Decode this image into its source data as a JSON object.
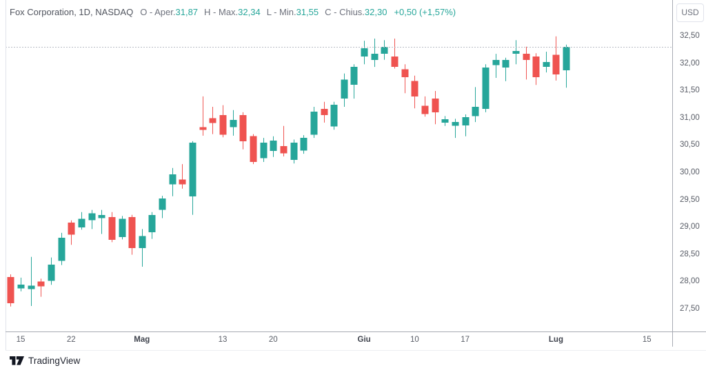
{
  "header": {
    "title": "Fox Corporation, 1D, NASDAQ",
    "ohlc": [
      {
        "label": "O - Aper.",
        "value": "31,87"
      },
      {
        "label": "H - Max.",
        "value": "32,34"
      },
      {
        "label": "L - Min.",
        "value": "31,55"
      },
      {
        "label": "C - Chius.",
        "value": "32,30"
      }
    ],
    "change": "+0,50 (+1,57%)"
  },
  "price_axis": {
    "currency_label": "USD",
    "ticks": [
      {
        "label": "32,50",
        "value": 32.5
      },
      {
        "label": "32,00",
        "value": 32.0
      },
      {
        "label": "31,50",
        "value": 31.5
      },
      {
        "label": "31,00",
        "value": 31.0
      },
      {
        "label": "30,50",
        "value": 30.5
      },
      {
        "label": "30,00",
        "value": 30.0
      },
      {
        "label": "29,50",
        "value": 29.5
      },
      {
        "label": "29,00",
        "value": 29.0
      },
      {
        "label": "28,50",
        "value": 28.5
      },
      {
        "label": "28,00",
        "value": 28.0
      },
      {
        "label": "27,50",
        "value": 27.5
      }
    ]
  },
  "time_axis": {
    "ticks": [
      {
        "label": "15",
        "slot": 1,
        "major": false
      },
      {
        "label": "22",
        "slot": 6,
        "major": false
      },
      {
        "label": "Mag",
        "slot": 13,
        "major": true
      },
      {
        "label": "13",
        "slot": 21,
        "major": false
      },
      {
        "label": "20",
        "slot": 26,
        "major": false
      },
      {
        "label": "Giu",
        "slot": 35,
        "major": true
      },
      {
        "label": "10",
        "slot": 40,
        "major": false
      },
      {
        "label": "17",
        "slot": 45,
        "major": false
      },
      {
        "label": "Lug",
        "slot": 54,
        "major": true
      },
      {
        "label": "15",
        "slot": 63,
        "major": false
      }
    ]
  },
  "watermark": {
    "text": "TradingView"
  },
  "colors": {
    "up": "#26a69a",
    "down": "#ef5350",
    "last_price_line": "#b8bbc5",
    "value_text": "#26a69a"
  },
  "chart_data": {
    "type": "candlestick",
    "title": "Fox Corporation, 1D, NASDAQ",
    "interval": "1D",
    "currency": "USD",
    "legend_last_bar": {
      "open": 31.87,
      "high": 32.34,
      "low": 31.55,
      "close": 32.3,
      "change_text": "+0,50 (+1,57%)"
    },
    "y_axis": {
      "min": 27.5,
      "max": 32.5,
      "step": 0.5,
      "side": "right",
      "grid": false
    },
    "x_axis": {
      "tick_labels": [
        "15",
        "22",
        "Mag",
        "13",
        "20",
        "Giu",
        "10",
        "17",
        "Lug",
        "15"
      ]
    },
    "last_price": 32.3,
    "candles_ohlc": [
      [
        28.08,
        28.13,
        27.54,
        27.6
      ],
      [
        27.87,
        28.07,
        27.82,
        27.94
      ],
      [
        27.86,
        28.45,
        27.55,
        27.92
      ],
      [
        28.0,
        28.05,
        27.72,
        27.91
      ],
      [
        28.01,
        28.44,
        27.94,
        28.31
      ],
      [
        28.38,
        28.89,
        28.3,
        28.8
      ],
      [
        29.08,
        29.12,
        28.67,
        28.86
      ],
      [
        28.99,
        29.27,
        28.95,
        29.15
      ],
      [
        29.12,
        29.31,
        28.96,
        29.25
      ],
      [
        29.16,
        29.31,
        28.87,
        29.22
      ],
      [
        29.18,
        29.27,
        28.72,
        28.76
      ],
      [
        28.81,
        29.2,
        28.77,
        29.15
      ],
      [
        29.18,
        29.22,
        28.49,
        28.61
      ],
      [
        28.61,
        28.96,
        28.27,
        28.83
      ],
      [
        28.9,
        29.27,
        28.78,
        29.22
      ],
      [
        29.31,
        29.57,
        29.16,
        29.52
      ],
      [
        29.78,
        30.08,
        29.56,
        29.96
      ],
      [
        29.87,
        30.15,
        29.7,
        29.78
      ],
      [
        29.56,
        30.57,
        29.22,
        30.54
      ],
      [
        30.83,
        31.39,
        30.67,
        30.78
      ],
      [
        30.99,
        31.2,
        30.7,
        30.9
      ],
      [
        31.05,
        31.23,
        30.64,
        30.69
      ],
      [
        30.83,
        31.14,
        30.67,
        30.96
      ],
      [
        31.05,
        31.1,
        30.42,
        30.57
      ],
      [
        30.66,
        30.7,
        30.15,
        30.19
      ],
      [
        30.26,
        30.63,
        30.19,
        30.54
      ],
      [
        30.39,
        30.66,
        30.28,
        30.58
      ],
      [
        30.48,
        30.85,
        30.29,
        30.35
      ],
      [
        30.23,
        30.6,
        30.16,
        30.54
      ],
      [
        30.4,
        30.68,
        30.34,
        30.63
      ],
      [
        30.69,
        31.2,
        30.63,
        31.11
      ],
      [
        31.16,
        31.29,
        30.91,
        31.05
      ],
      [
        30.84,
        31.29,
        30.78,
        31.24
      ],
      [
        31.35,
        31.81,
        31.2,
        31.7
      ],
      [
        31.6,
        31.98,
        31.35,
        31.93
      ],
      [
        32.12,
        32.41,
        31.98,
        32.27
      ],
      [
        32.06,
        32.45,
        31.93,
        32.17
      ],
      [
        32.17,
        32.42,
        32.06,
        32.3
      ],
      [
        32.12,
        32.45,
        31.9,
        31.93
      ],
      [
        31.89,
        31.98,
        31.45,
        31.74
      ],
      [
        31.67,
        31.77,
        31.17,
        31.39
      ],
      [
        31.22,
        31.39,
        31.02,
        31.07
      ],
      [
        31.35,
        31.49,
        30.88,
        31.1
      ],
      [
        30.91,
        31.03,
        30.85,
        30.97
      ],
      [
        30.85,
        30.98,
        30.63,
        30.92
      ],
      [
        30.86,
        31.06,
        30.66,
        31.01
      ],
      [
        31.03,
        31.56,
        30.92,
        31.2
      ],
      [
        31.16,
        31.98,
        31.1,
        31.92
      ],
      [
        31.96,
        32.17,
        31.73,
        32.06
      ],
      [
        31.92,
        32.1,
        31.67,
        32.06
      ],
      [
        32.17,
        32.42,
        31.98,
        32.22
      ],
      [
        32.17,
        32.3,
        31.7,
        32.06
      ],
      [
        32.12,
        32.18,
        31.6,
        31.74
      ],
      [
        31.93,
        32.21,
        31.83,
        32.02
      ],
      [
        32.15,
        32.49,
        31.68,
        31.79
      ],
      [
        31.87,
        32.34,
        31.55,
        32.3
      ]
    ]
  }
}
